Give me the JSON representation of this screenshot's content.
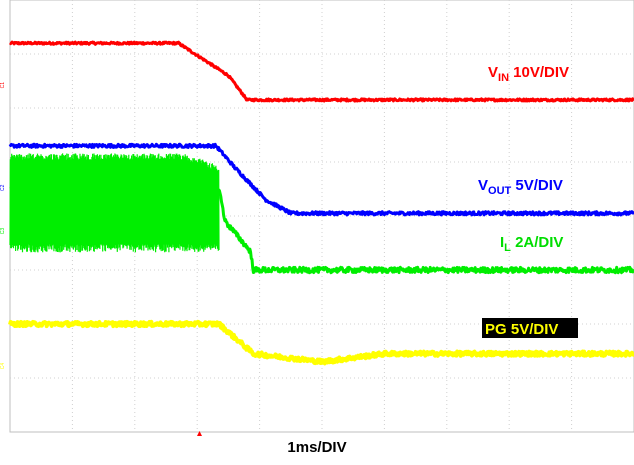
{
  "chart_data": {
    "type": "line",
    "title": "",
    "xlabel": "1ms/DIV",
    "ylabel": "",
    "xlim": [
      0,
      10
    ],
    "ylim": [
      0,
      8
    ],
    "x_unit": "ms",
    "grid": true,
    "x_divisions": 10,
    "y_divisions": 8,
    "trigger_time_div": 4.4,
    "series": [
      {
        "name": "V_IN",
        "label_main": "V",
        "label_sub": "IN",
        "label_rest": " 10V/DIV",
        "color": "#ff0000",
        "x": [
          0,
          2.7,
          3.5,
          3.8,
          10
        ],
        "y_div": [
          7.2,
          7.2,
          6.6,
          6.15,
          6.15
        ],
        "noise_div": 0.02
      },
      {
        "name": "V_OUT",
        "label_main": "V",
        "label_sub": "OUT",
        "label_rest": " 5V/DIV",
        "color": "#0000ff",
        "x": [
          0,
          3.3,
          3.6,
          4.1,
          4.5,
          10
        ],
        "y_div": [
          5.3,
          5.3,
          4.9,
          4.3,
          4.05,
          4.05
        ],
        "noise_div": 0.03
      },
      {
        "name": "I_L",
        "label_main": "I",
        "label_sub": "L",
        "label_rest": " 2A/DIV",
        "color": "#00ee00",
        "x": [
          0,
          3.35,
          3.45,
          3.85,
          3.9,
          3.9,
          10
        ],
        "y_div": [
          4.5,
          4.5,
          3.9,
          3.35,
          3.0,
          3.0,
          3.0
        ],
        "noise_div": 0.05,
        "ripple_div": [
          3.4,
          5.1
        ],
        "ripple_end_div": 3.35
      },
      {
        "name": "PG",
        "label_main": "PG",
        "label_sub": "",
        "label_rest": " 5V/DIV",
        "color": "#ffff00",
        "x": [
          0,
          3.35,
          3.9,
          5.0,
          6.0,
          10
        ],
        "y_div": [
          2.0,
          2.0,
          1.45,
          1.3,
          1.45,
          1.45
        ],
        "noise_div": 0.04
      }
    ],
    "channel_markers": [
      "C1",
      "C2",
      "C3",
      "C4"
    ]
  }
}
